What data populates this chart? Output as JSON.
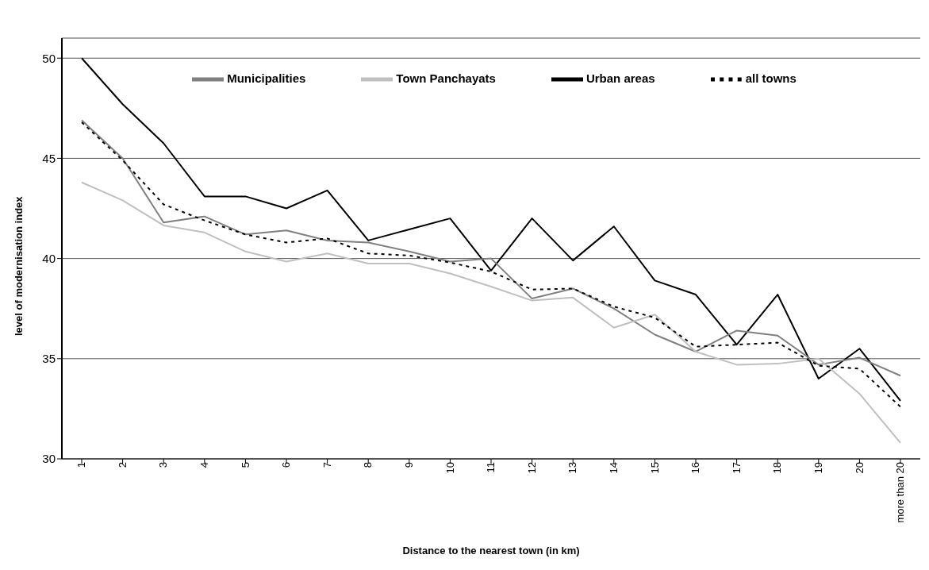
{
  "chart_data": {
    "type": "line",
    "xlabel": "Distance to the nearest town (in km)",
    "ylabel": "level of modernisation index",
    "categories": [
      "1",
      "2",
      "3",
      "4",
      "5",
      "6",
      "7",
      "8",
      "9",
      "10",
      "11",
      "12",
      "13",
      "14",
      "15",
      "16",
      "17",
      "18",
      "19",
      "20",
      "more than 20"
    ],
    "series": [
      {
        "name": "Urban areas",
        "color": "#000000",
        "line_style": "solid",
        "values": [
          50.0,
          47.7,
          45.75,
          43.1,
          43.1,
          42.5,
          43.4,
          40.9,
          41.45,
          42.0,
          39.4,
          42.0,
          39.9,
          41.6,
          38.9,
          38.2,
          35.7,
          38.2,
          34.0,
          35.5,
          32.9
        ]
      },
      {
        "name": "Municipalities",
        "color": "#808080",
        "line_style": "solid",
        "values": [
          46.9,
          45.0,
          41.8,
          42.1,
          41.2,
          41.4,
          40.9,
          40.8,
          40.35,
          39.85,
          40.0,
          38.0,
          38.5,
          37.5,
          36.2,
          35.35,
          36.4,
          36.15,
          34.7,
          35.05,
          34.15
        ]
      },
      {
        "name": "Town Panchayats",
        "color": "#c0c0c0",
        "line_style": "solid",
        "values": [
          43.8,
          42.9,
          41.65,
          41.3,
          40.35,
          39.85,
          40.25,
          39.75,
          39.75,
          39.25,
          38.6,
          37.9,
          38.05,
          36.55,
          37.2,
          35.35,
          34.7,
          34.75,
          35.0,
          33.25,
          30.8
        ]
      },
      {
        "name": "all towns",
        "color": "#000000",
        "line_style": "dashed",
        "values": [
          46.8,
          44.9,
          42.7,
          41.9,
          41.2,
          40.8,
          41.0,
          40.25,
          40.15,
          39.8,
          39.35,
          38.45,
          38.5,
          37.6,
          37.05,
          35.6,
          35.7,
          35.8,
          34.65,
          34.5,
          32.6
        ]
      }
    ],
    "ylim": [
      30,
      51
    ],
    "yticks": [
      30,
      35,
      40,
      45,
      50
    ],
    "grid": "y",
    "legend": "top",
    "marker": "none"
  }
}
